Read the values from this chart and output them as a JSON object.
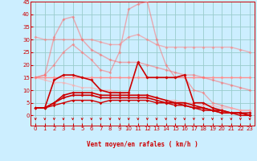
{
  "xlabel": "Vent moyen/en rafales ( km/h )",
  "bg_color": "#cceeff",
  "grid_color": "#99cccc",
  "x": [
    0,
    1,
    2,
    3,
    4,
    5,
    6,
    7,
    8,
    9,
    10,
    11,
    12,
    13,
    14,
    15,
    16,
    17,
    18,
    19,
    20,
    21,
    22,
    23
  ],
  "ylim": [
    -4,
    45
  ],
  "xlim": [
    -0.5,
    23.5
  ],
  "series": [
    {
      "color": "#ff9090",
      "alpha": 1.0,
      "lw": 1.0,
      "marker": "D",
      "ms": 2.0,
      "y": [
        15,
        15,
        15,
        15,
        15,
        15,
        15,
        15,
        15,
        15,
        15,
        15,
        15,
        15,
        15,
        15,
        15,
        15,
        15,
        15,
        15,
        15,
        15,
        15
      ]
    },
    {
      "color": "#ff7070",
      "alpha": 0.55,
      "lw": 1.0,
      "marker": "D",
      "ms": 2.0,
      "y": [
        15,
        16,
        20,
        25,
        28,
        25,
        22,
        18,
        17,
        25,
        42,
        44,
        45,
        30,
        20,
        15,
        15,
        10,
        9,
        5,
        4,
        3,
        2,
        2
      ]
    },
    {
      "color": "#ff8080",
      "alpha": 0.55,
      "lw": 1.0,
      "marker": "D",
      "ms": 2.0,
      "y": [
        31,
        30,
        30,
        30,
        30,
        30,
        30,
        29,
        28,
        28,
        31,
        32,
        30,
        28,
        27,
        27,
        27,
        27,
        27,
        27,
        27,
        27,
        26,
        25
      ]
    },
    {
      "color": "#ffaaaa",
      "alpha": 0.6,
      "lw": 1.0,
      "marker": "D",
      "ms": 2.0,
      "y": [
        15,
        14,
        13,
        13,
        12,
        11,
        11,
        10,
        10,
        9,
        8,
        8,
        7,
        7,
        6,
        6,
        5,
        5,
        4,
        4,
        3,
        3,
        2,
        2
      ]
    },
    {
      "color": "#ff6868",
      "alpha": 0.5,
      "lw": 1.1,
      "marker": "D",
      "ms": 2.0,
      "y": [
        15,
        16,
        31,
        38,
        39,
        30,
        26,
        24,
        22,
        21,
        21,
        21,
        20,
        19,
        18,
        17,
        16,
        16,
        15,
        14,
        13,
        12,
        11,
        10
      ]
    },
    {
      "color": "#cc0000",
      "alpha": 1.0,
      "lw": 1.2,
      "marker": "D",
      "ms": 2.0,
      "y": [
        3,
        3,
        14,
        16,
        16,
        15,
        14,
        10,
        9,
        9,
        9,
        21,
        15,
        15,
        15,
        15,
        16,
        5,
        5,
        3,
        2,
        1,
        1,
        1
      ]
    },
    {
      "color": "#cc0000",
      "alpha": 1.0,
      "lw": 1.2,
      "marker": "D",
      "ms": 2.0,
      "y": [
        3,
        3,
        5,
        7,
        8,
        8,
        8,
        7,
        7,
        7,
        7,
        7,
        7,
        6,
        5,
        5,
        4,
        3,
        3,
        2,
        1,
        1,
        1,
        0
      ]
    },
    {
      "color": "#cc0000",
      "alpha": 1.0,
      "lw": 1.2,
      "marker": "D",
      "ms": 2.0,
      "y": [
        3,
        3,
        5,
        8,
        9,
        9,
        9,
        8,
        8,
        8,
        8,
        8,
        8,
        7,
        6,
        5,
        5,
        4,
        3,
        2,
        2,
        1,
        1,
        0
      ]
    },
    {
      "color": "#cc0000",
      "alpha": 1.0,
      "lw": 1.0,
      "marker": "D",
      "ms": 1.8,
      "y": [
        3,
        3,
        4,
        5,
        6,
        6,
        6,
        5,
        6,
        6,
        6,
        6,
        6,
        5,
        5,
        4,
        4,
        3,
        2,
        2,
        1,
        1,
        0,
        0
      ]
    }
  ],
  "yticks": [
    0,
    5,
    10,
    15,
    20,
    25,
    30,
    35,
    40,
    45
  ],
  "xticks": [
    0,
    1,
    2,
    3,
    4,
    5,
    6,
    7,
    8,
    9,
    10,
    11,
    12,
    13,
    14,
    15,
    16,
    17,
    18,
    19,
    20,
    21,
    22,
    23
  ]
}
